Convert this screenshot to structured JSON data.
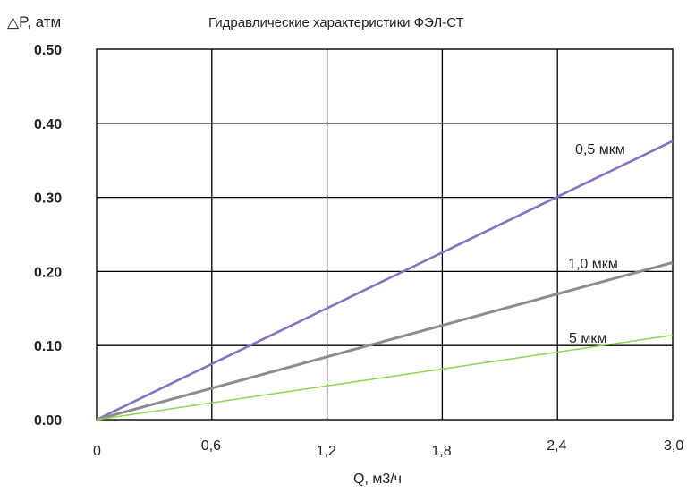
{
  "chart_data": {
    "type": "line",
    "title": "Гидравлические характеристики ФЭЛ-СТ",
    "xlabel": "Q, м3/ч",
    "ylabel": "△P, атм",
    "x_ticks": [
      "0",
      "0,6",
      "1,2",
      "1,8",
      "2,4",
      "3,0"
    ],
    "y_ticks": [
      "0.00",
      "0.10",
      "0.20",
      "0.30",
      "0.40",
      "0.50"
    ],
    "xlim": [
      0,
      3.0
    ],
    "ylim": [
      0,
      0.5
    ],
    "grid": true,
    "legend": "inline-labels",
    "series": [
      {
        "name": "0,5 мкм",
        "color": "#8a6fc7",
        "points": [
          [
            0,
            0
          ],
          [
            3.0,
            0.376
          ]
        ]
      },
      {
        "name": "1,0 мкм",
        "color": "#8c8c8c",
        "points": [
          [
            0,
            0
          ],
          [
            3.0,
            0.212
          ]
        ]
      },
      {
        "name": "5 мкм",
        "color": "#8fd14f",
        "points": [
          [
            0,
            0
          ],
          [
            3.0,
            0.114
          ]
        ]
      }
    ]
  }
}
